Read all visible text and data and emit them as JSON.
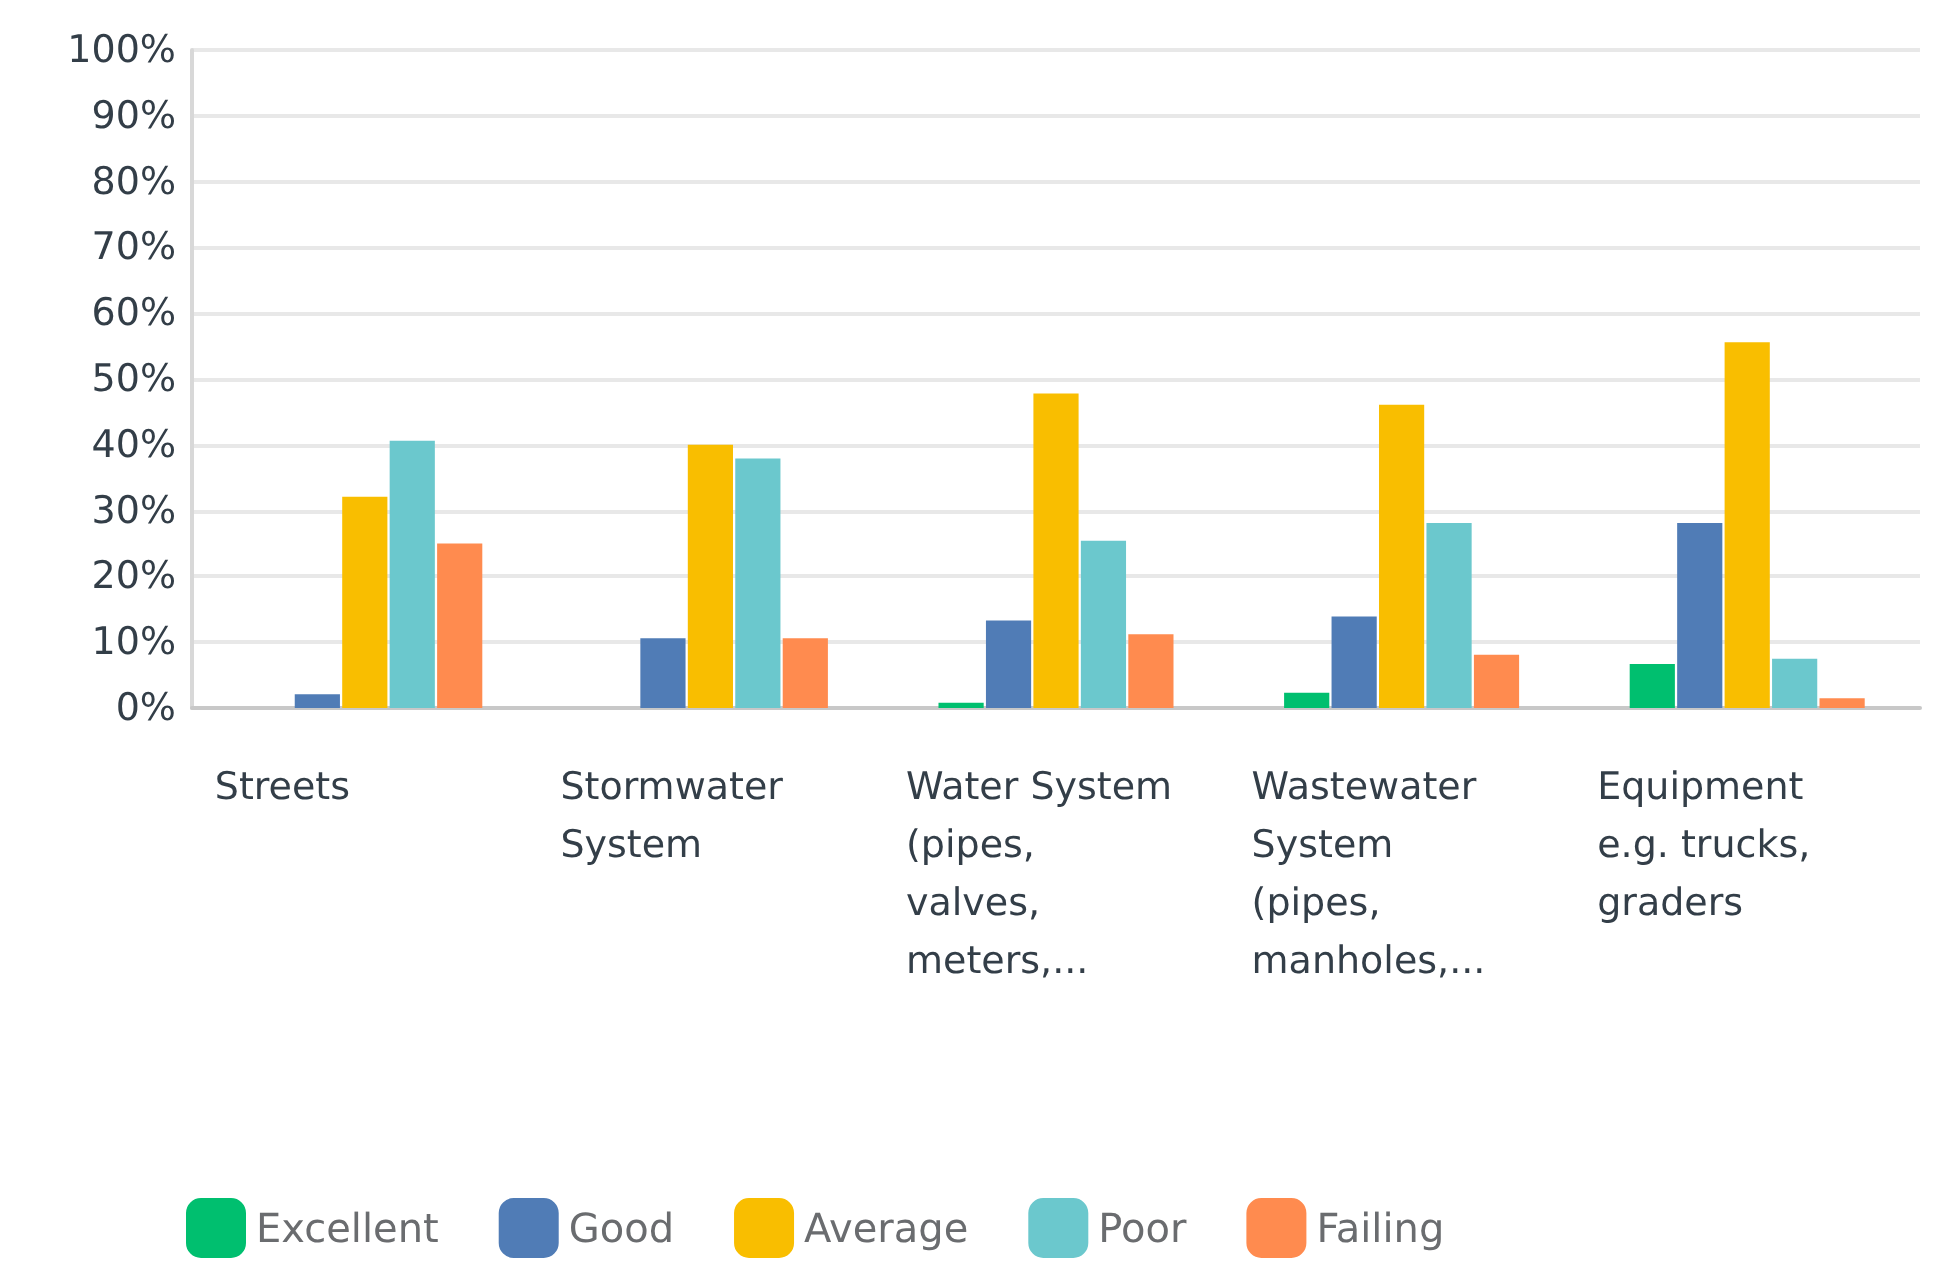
{
  "chart_data": {
    "type": "bar",
    "categories": [
      "Streets",
      "Stormwater\nSystem",
      "Water System\n(pipes,\nvalves,\nmeters,...",
      "Wastewater\nSystem\n(pipes,\nmanholes,...",
      "Equipment\ne.g. trucks,\ngraders"
    ],
    "series": [
      {
        "name": "Excellent",
        "color": "#00bf6f",
        "values": [
          0,
          0,
          0.8,
          2.3,
          6.7
        ]
      },
      {
        "name": "Good",
        "color": "#507cb6",
        "values": [
          2.1,
          10.6,
          13.3,
          13.9,
          28.1
        ]
      },
      {
        "name": "Average",
        "color": "#f9be00",
        "values": [
          32.1,
          40.0,
          47.8,
          46.1,
          55.6
        ]
      },
      {
        "name": "Poor",
        "color": "#6bc8cd",
        "values": [
          40.6,
          37.9,
          25.4,
          28.1,
          7.5
        ]
      },
      {
        "name": "Failing",
        "color": "#ff8b4f",
        "values": [
          25.0,
          10.6,
          11.2,
          8.1,
          1.5
        ]
      }
    ],
    "ylim": [
      0,
      100
    ],
    "yticks": [
      {
        "value": 0,
        "label": "0%"
      },
      {
        "value": 10,
        "label": "10%"
      },
      {
        "value": 20,
        "label": "20%"
      },
      {
        "value": 30,
        "label": "30%"
      },
      {
        "value": 40,
        "label": "40%"
      },
      {
        "value": 50,
        "label": "50%"
      },
      {
        "value": 60,
        "label": "60%"
      },
      {
        "value": 70,
        "label": "70%"
      },
      {
        "value": 80,
        "label": "80%"
      },
      {
        "value": 90,
        "label": "90%"
      },
      {
        "value": 100,
        "label": "100%"
      }
    ],
    "grid": "y",
    "legend": "bottom"
  }
}
